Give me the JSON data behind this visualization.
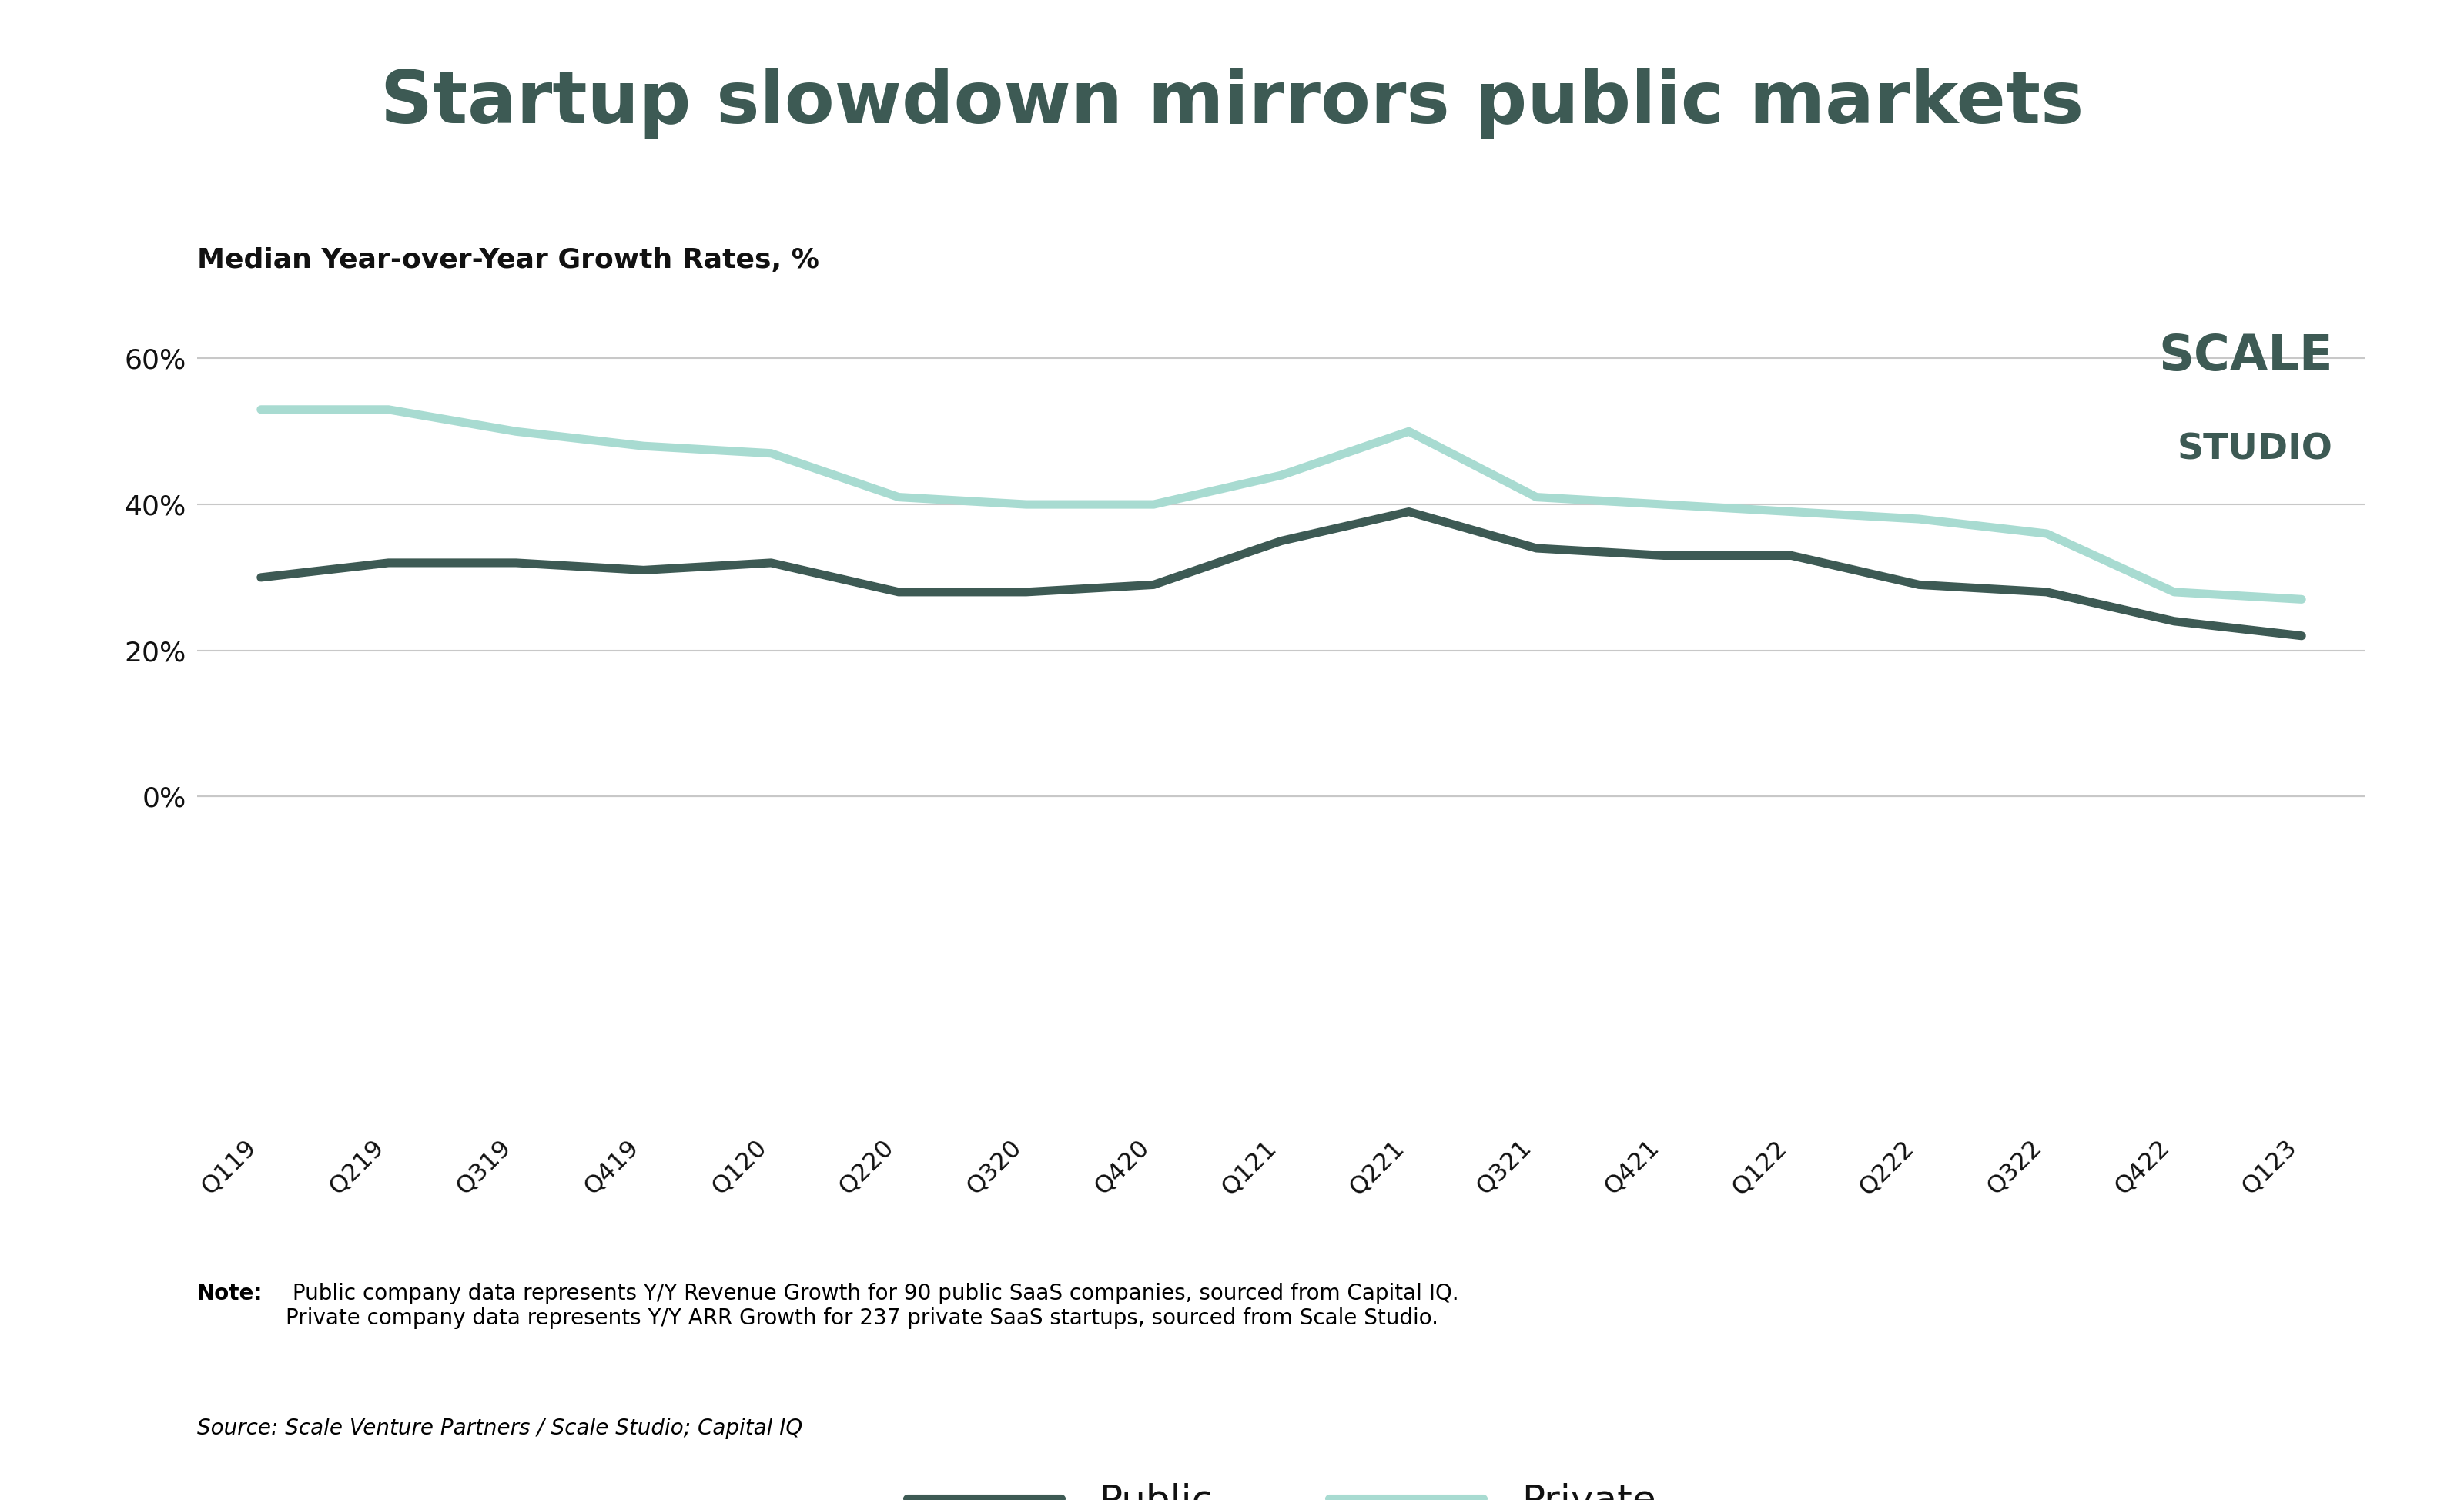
{
  "title": "Startup slowdown mirrors public markets",
  "subtitle": "Median Year-over-Year Growth Rates, %",
  "x_labels": [
    "Q119",
    "Q219",
    "Q319",
    "Q419",
    "Q120",
    "Q220",
    "Q320",
    "Q420",
    "Q121",
    "Q221",
    "Q321",
    "Q421",
    "Q122",
    "Q222",
    "Q322",
    "Q422",
    "Q123"
  ],
  "public": [
    30,
    32,
    32,
    31,
    32,
    28,
    28,
    29,
    35,
    39,
    34,
    33,
    33,
    29,
    28,
    24,
    22
  ],
  "private": [
    53,
    53,
    50,
    48,
    47,
    41,
    40,
    40,
    44,
    50,
    41,
    40,
    39,
    38,
    36,
    28,
    27
  ],
  "public_color": "#3d5a54",
  "private_color": "#a8dbd1",
  "title_color": "#3d5a54",
  "subtitle_color": "#111111",
  "tick_label_color": "#111111",
  "grid_color": "#c8c8c8",
  "background_color": "#ffffff",
  "line_width": 8,
  "note_bold": "Note:",
  "note_text": " Public company data represents Y/Y Revenue Growth for 90 public SaaS companies, sourced from Capital IQ.\nPrivate company data represents Y/Y ARR Growth for 237 private SaaS startups, sourced from Scale Studio.",
  "source_text": "Source: Scale Venture Partners / Scale Studio; Capital IQ",
  "scale_text1": "SCALE",
  "scale_text2": "STUDIO"
}
